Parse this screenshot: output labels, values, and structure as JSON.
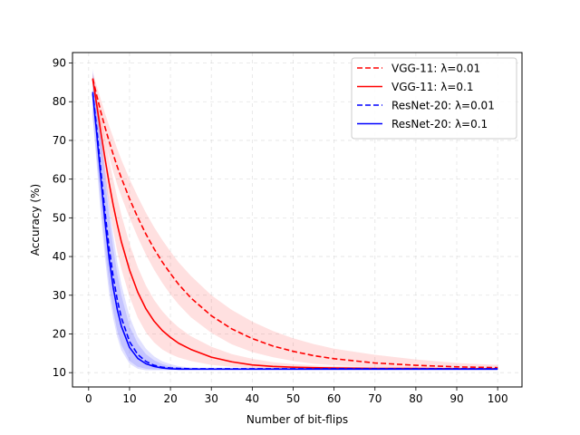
{
  "chart_data": {
    "type": "line",
    "title": "",
    "xlabel": "Number of bit-flips",
    "ylabel": "Accuracy (%)",
    "xlim": [
      -3.95,
      105.95
    ],
    "ylim": [
      6.3,
      92.7
    ],
    "xticks": [
      0,
      10,
      20,
      30,
      40,
      50,
      60,
      70,
      80,
      90,
      100
    ],
    "yticks": [
      10,
      20,
      30,
      40,
      50,
      60,
      70,
      80,
      90
    ],
    "grid": true,
    "legend_position": "top-right",
    "x": [
      1,
      2,
      3,
      4,
      5,
      6,
      7,
      8,
      10,
      12,
      14,
      16,
      18,
      20,
      22,
      25,
      30,
      35,
      40,
      45,
      50,
      55,
      60,
      70,
      80,
      90,
      100
    ],
    "series": [
      {
        "name": "VGG-11: λ=0.01",
        "color": "#ff0000",
        "style": "dashed",
        "values": [
          86.0,
          81.5,
          77.3,
          73.4,
          69.8,
          66.4,
          63.2,
          60.3,
          54.9,
          50.1,
          45.8,
          42.0,
          38.6,
          35.6,
          32.8,
          29.3,
          24.7,
          21.3,
          18.8,
          16.9,
          15.5,
          14.4,
          13.6,
          12.5,
          11.9,
          11.5,
          11.3
        ],
        "band_upper": [
          87.5,
          84.0,
          80.5,
          77.0,
          73.8,
          70.8,
          67.8,
          65.0,
          60.0,
          55.5,
          51.3,
          47.6,
          44.3,
          41.3,
          38.5,
          35.0,
          30.0,
          26.2,
          23.2,
          20.8,
          18.9,
          17.4,
          16.2,
          14.6,
          13.4,
          12.5,
          12.0
        ],
        "band_lower": [
          84.5,
          79.0,
          74.0,
          69.8,
          65.8,
          62.0,
          58.5,
          55.5,
          50.0,
          45.0,
          40.5,
          36.6,
          33.2,
          30.2,
          27.6,
          24.3,
          20.3,
          17.3,
          15.3,
          14.0,
          13.0,
          12.3,
          11.9,
          11.4,
          11.2,
          11.1,
          11.0
        ]
      },
      {
        "name": "VGG-11: λ=0.1",
        "color": "#ff0000",
        "style": "solid",
        "values": [
          85.8,
          79.0,
          72.0,
          65.3,
          59.0,
          53.3,
          48.3,
          43.8,
          36.5,
          30.8,
          26.5,
          23.3,
          20.9,
          19.1,
          17.6,
          16.0,
          14.0,
          12.8,
          12.0,
          11.6,
          11.4,
          11.3,
          11.2,
          11.1,
          11.1,
          11.0,
          11.0
        ],
        "band_upper": [
          87.0,
          81.5,
          76.0,
          70.5,
          65.0,
          60.0,
          55.2,
          50.8,
          43.3,
          37.3,
          32.5,
          28.8,
          25.9,
          23.6,
          21.7,
          19.4,
          16.7,
          14.8,
          13.6,
          12.7,
          12.2,
          11.9,
          11.7,
          11.4,
          11.2,
          11.1,
          11.1
        ],
        "band_lower": [
          84.5,
          76.5,
          68.0,
          60.0,
          53.0,
          46.8,
          41.3,
          36.8,
          29.6,
          24.2,
          20.4,
          17.8,
          16.0,
          14.8,
          13.9,
          13.0,
          12.0,
          11.5,
          11.2,
          11.1,
          11.0,
          11.0,
          11.0,
          10.9,
          10.9,
          10.9,
          10.9
        ]
      },
      {
        "name": "ResNet-20: λ=0.01",
        "color": "#0000ff",
        "style": "dashed",
        "values": [
          82.5,
          73.0,
          62.0,
          51.5,
          42.3,
          34.8,
          28.8,
          24.2,
          18.0,
          14.7,
          12.9,
          11.9,
          11.4,
          11.2,
          11.1,
          11.0,
          11.0,
          11.0,
          11.0,
          11.0,
          11.0,
          11.0,
          11.0,
          11.0,
          11.0,
          11.0,
          11.0
        ],
        "band_upper": [
          88.5,
          81.0,
          72.0,
          62.5,
          53.5,
          45.5,
          38.5,
          32.8,
          24.5,
          19.3,
          16.2,
          14.2,
          12.9,
          12.2,
          11.7,
          11.3,
          11.1,
          11.0,
          11.0,
          11.0,
          11.0,
          11.0,
          11.0,
          11.0,
          11.0,
          11.0,
          11.0
        ],
        "band_lower": [
          76.0,
          65.0,
          53.0,
          42.0,
          33.0,
          26.0,
          20.8,
          17.2,
          13.0,
          11.5,
          11.0,
          10.8,
          10.8,
          10.8,
          10.8,
          10.8,
          10.8,
          10.8,
          10.8,
          10.8,
          10.8,
          10.8,
          10.8,
          10.8,
          10.8,
          10.8,
          10.8
        ]
      },
      {
        "name": "ResNet-20: λ=0.1",
        "color": "#0000ff",
        "style": "solid",
        "values": [
          82.0,
          71.5,
          60.0,
          49.0,
          39.5,
          32.0,
          26.3,
          22.0,
          16.5,
          13.7,
          12.3,
          11.6,
          11.2,
          11.0,
          10.9,
          10.9,
          10.9,
          10.9,
          10.9,
          10.9,
          10.9,
          10.9,
          10.9,
          10.9,
          10.9,
          10.9,
          10.9
        ],
        "band_upper": [
          87.5,
          79.5,
          70.0,
          60.0,
          50.5,
          42.3,
          35.5,
          30.0,
          22.0,
          17.5,
          14.8,
          13.2,
          12.2,
          11.6,
          11.3,
          11.1,
          10.9,
          10.9,
          10.9,
          10.9,
          10.9,
          10.9,
          10.9,
          10.9,
          10.9,
          10.9,
          10.9
        ],
        "band_lower": [
          76.0,
          63.5,
          50.5,
          39.5,
          30.5,
          24.0,
          19.2,
          15.8,
          12.3,
          11.0,
          10.6,
          10.6,
          10.6,
          10.6,
          10.6,
          10.6,
          10.6,
          10.6,
          10.6,
          10.6,
          10.6,
          10.6,
          10.6,
          10.6,
          10.6,
          10.6,
          10.6
        ]
      }
    ]
  }
}
